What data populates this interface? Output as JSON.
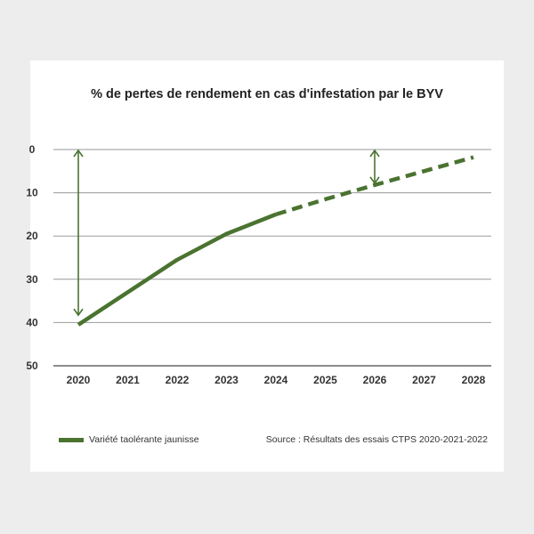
{
  "chart_data": {
    "type": "line",
    "title": "% de pertes de rendement en cas d'infestation par le BYV",
    "x": [
      2020,
      2021,
      2022,
      2023,
      2024,
      2025,
      2026,
      2027,
      2028
    ],
    "x_tick_labels": [
      "2020",
      "2021",
      "2022",
      "2023",
      "2024",
      "2025",
      "2026",
      "2027",
      "2028"
    ],
    "y_tick_labels": [
      "0",
      "10",
      "20",
      "30",
      "40",
      "50"
    ],
    "ylim": [
      0,
      50
    ],
    "y_inverted": true,
    "grid": true,
    "legend_placement": "bottom-left",
    "series": [
      {
        "name": "Variété taolérante jaunisse",
        "color": "#4a7330",
        "observed": {
          "x": [
            2020,
            2021,
            2022,
            2023,
            2024
          ],
          "values": [
            40.5,
            33,
            25.5,
            19.5,
            15
          ]
        },
        "projected": {
          "x": [
            2024,
            2025,
            2026,
            2027,
            2028
          ],
          "values": [
            15,
            11.5,
            8.2,
            5,
            1.8
          ]
        }
      }
    ],
    "annotations": [
      {
        "type": "double-arrow",
        "x": 2020,
        "from": 0,
        "to": 38.5
      },
      {
        "type": "double-arrow",
        "x": 2026,
        "from": 0,
        "to": 8
      }
    ],
    "source": "Source : Résultats des essais CTPS 2020-2021-2022"
  }
}
